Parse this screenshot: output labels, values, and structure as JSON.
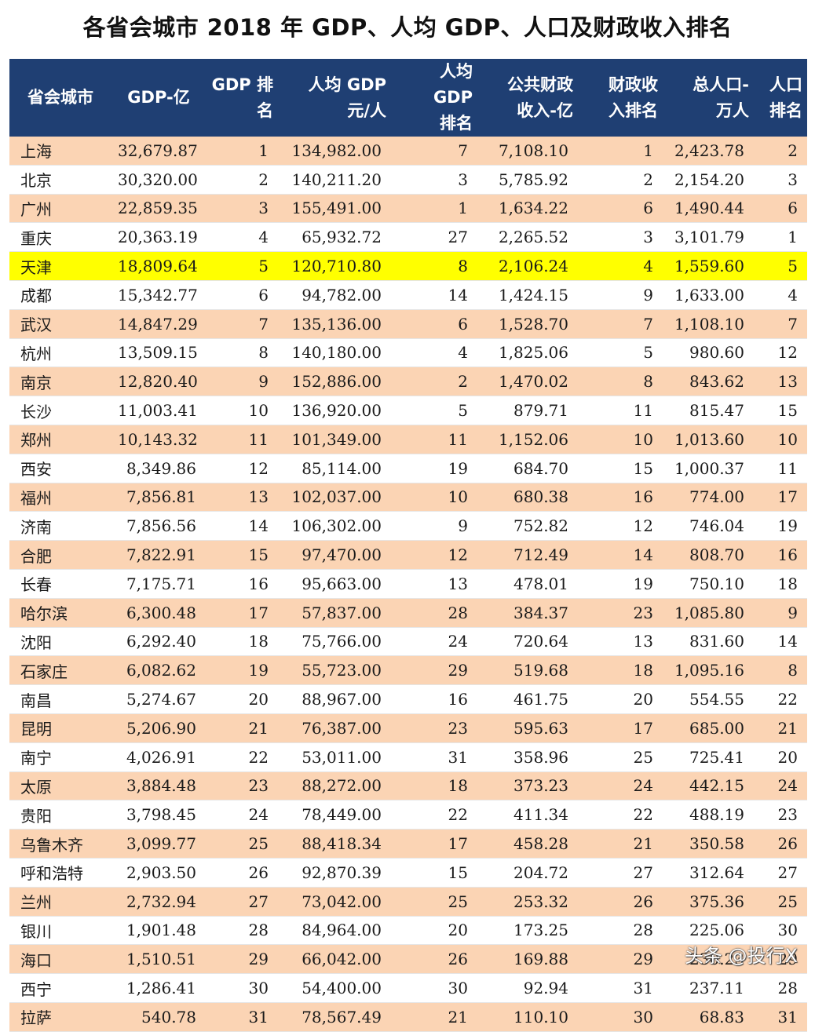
{
  "title": "各省会城市 2018 年 GDP、人均 GDP、人口及财政收入排名",
  "colors": {
    "header_bg": "#1f3f73",
    "odd_row_bg": "#fbd4b4",
    "even_row_bg": "#ffffff",
    "highlight_bg": "#ffff00"
  },
  "headers": [
    [
      "省会城市"
    ],
    [
      "GDP-亿"
    ],
    [
      "GDP 排",
      "名"
    ],
    [
      "人均 GDP",
      "元/人"
    ],
    [
      "人均 GDP",
      "排名"
    ],
    [
      "公共财政",
      "收入-亿"
    ],
    [
      "财政收",
      "入排名"
    ],
    [
      "总人口-",
      "万人"
    ],
    [
      "人口",
      "排名"
    ]
  ],
  "highlight_city": "天津",
  "rows": [
    [
      "上海",
      "32,679.87",
      "1",
      "134,982.00",
      "7",
      "7,108.10",
      "1",
      "2,423.78",
      "2"
    ],
    [
      "北京",
      "30,320.00",
      "2",
      "140,211.20",
      "3",
      "5,785.92",
      "2",
      "2,154.20",
      "3"
    ],
    [
      "广州",
      "22,859.35",
      "3",
      "155,491.00",
      "1",
      "1,634.22",
      "6",
      "1,490.44",
      "6"
    ],
    [
      "重庆",
      "20,363.19",
      "4",
      "65,932.72",
      "27",
      "2,265.52",
      "3",
      "3,101.79",
      "1"
    ],
    [
      "天津",
      "18,809.64",
      "5",
      "120,710.80",
      "8",
      "2,106.24",
      "4",
      "1,559.60",
      "5"
    ],
    [
      "成都",
      "15,342.77",
      "6",
      "94,782.00",
      "14",
      "1,424.15",
      "9",
      "1,633.00",
      "4"
    ],
    [
      "武汉",
      "14,847.29",
      "7",
      "135,136.00",
      "6",
      "1,528.70",
      "7",
      "1,108.10",
      "7"
    ],
    [
      "杭州",
      "13,509.15",
      "8",
      "140,180.00",
      "4",
      "1,825.06",
      "5",
      "980.60",
      "12"
    ],
    [
      "南京",
      "12,820.40",
      "9",
      "152,886.00",
      "2",
      "1,470.02",
      "8",
      "843.62",
      "13"
    ],
    [
      "长沙",
      "11,003.41",
      "10",
      "136,920.00",
      "5",
      "879.71",
      "11",
      "815.47",
      "15"
    ],
    [
      "郑州",
      "10,143.32",
      "11",
      "101,349.00",
      "11",
      "1,152.06",
      "10",
      "1,013.60",
      "10"
    ],
    [
      "西安",
      "8,349.86",
      "12",
      "85,114.00",
      "19",
      "684.70",
      "15",
      "1,000.37",
      "11"
    ],
    [
      "福州",
      "7,856.81",
      "13",
      "102,037.00",
      "10",
      "680.38",
      "16",
      "774.00",
      "17"
    ],
    [
      "济南",
      "7,856.56",
      "14",
      "106,302.00",
      "9",
      "752.82",
      "12",
      "746.04",
      "19"
    ],
    [
      "合肥",
      "7,822.91",
      "15",
      "97,470.00",
      "12",
      "712.49",
      "14",
      "808.70",
      "16"
    ],
    [
      "长春",
      "7,175.71",
      "16",
      "95,663.00",
      "13",
      "478.01",
      "19",
      "750.10",
      "18"
    ],
    [
      "哈尔滨",
      "6,300.48",
      "17",
      "57,837.00",
      "28",
      "384.37",
      "23",
      "1,085.80",
      "9"
    ],
    [
      "沈阳",
      "6,292.40",
      "18",
      "75,766.00",
      "24",
      "720.64",
      "13",
      "831.60",
      "14"
    ],
    [
      "石家庄",
      "6,082.62",
      "19",
      "55,723.00",
      "29",
      "519.68",
      "18",
      "1,095.16",
      "8"
    ],
    [
      "南昌",
      "5,274.67",
      "20",
      "88,967.00",
      "16",
      "461.75",
      "20",
      "554.55",
      "22"
    ],
    [
      "昆明",
      "5,206.90",
      "21",
      "76,387.00",
      "23",
      "595.63",
      "17",
      "685.00",
      "21"
    ],
    [
      "南宁",
      "4,026.91",
      "22",
      "53,011.00",
      "31",
      "358.96",
      "25",
      "725.41",
      "20"
    ],
    [
      "太原",
      "3,884.48",
      "23",
      "88,272.00",
      "18",
      "373.23",
      "24",
      "442.15",
      "24"
    ],
    [
      "贵阳",
      "3,798.45",
      "24",
      "78,449.00",
      "22",
      "411.34",
      "22",
      "488.19",
      "23"
    ],
    [
      "乌鲁木齐",
      "3,099.77",
      "25",
      "88,418.34",
      "17",
      "458.28",
      "21",
      "350.58",
      "26"
    ],
    [
      "呼和浩特",
      "2,903.50",
      "26",
      "92,870.39",
      "15",
      "204.72",
      "27",
      "312.64",
      "27"
    ],
    [
      "兰州",
      "2,732.94",
      "27",
      "73,042.00",
      "25",
      "253.32",
      "26",
      "375.36",
      "25"
    ],
    [
      "银川",
      "1,901.48",
      "28",
      "84,964.00",
      "20",
      "173.25",
      "28",
      "225.06",
      "30"
    ],
    [
      "海口",
      "1,510.51",
      "29",
      "66,042.00",
      "26",
      "169.88",
      "29",
      "230.23",
      "29"
    ],
    [
      "西宁",
      "1,286.41",
      "30",
      "54,400.00",
      "30",
      "92.94",
      "31",
      "237.11",
      "28"
    ],
    [
      "拉萨",
      "540.78",
      "31",
      "78,567.49",
      "21",
      "110.10",
      "30",
      "68.83",
      "31"
    ]
  ],
  "watermark": "头条 @投行X"
}
